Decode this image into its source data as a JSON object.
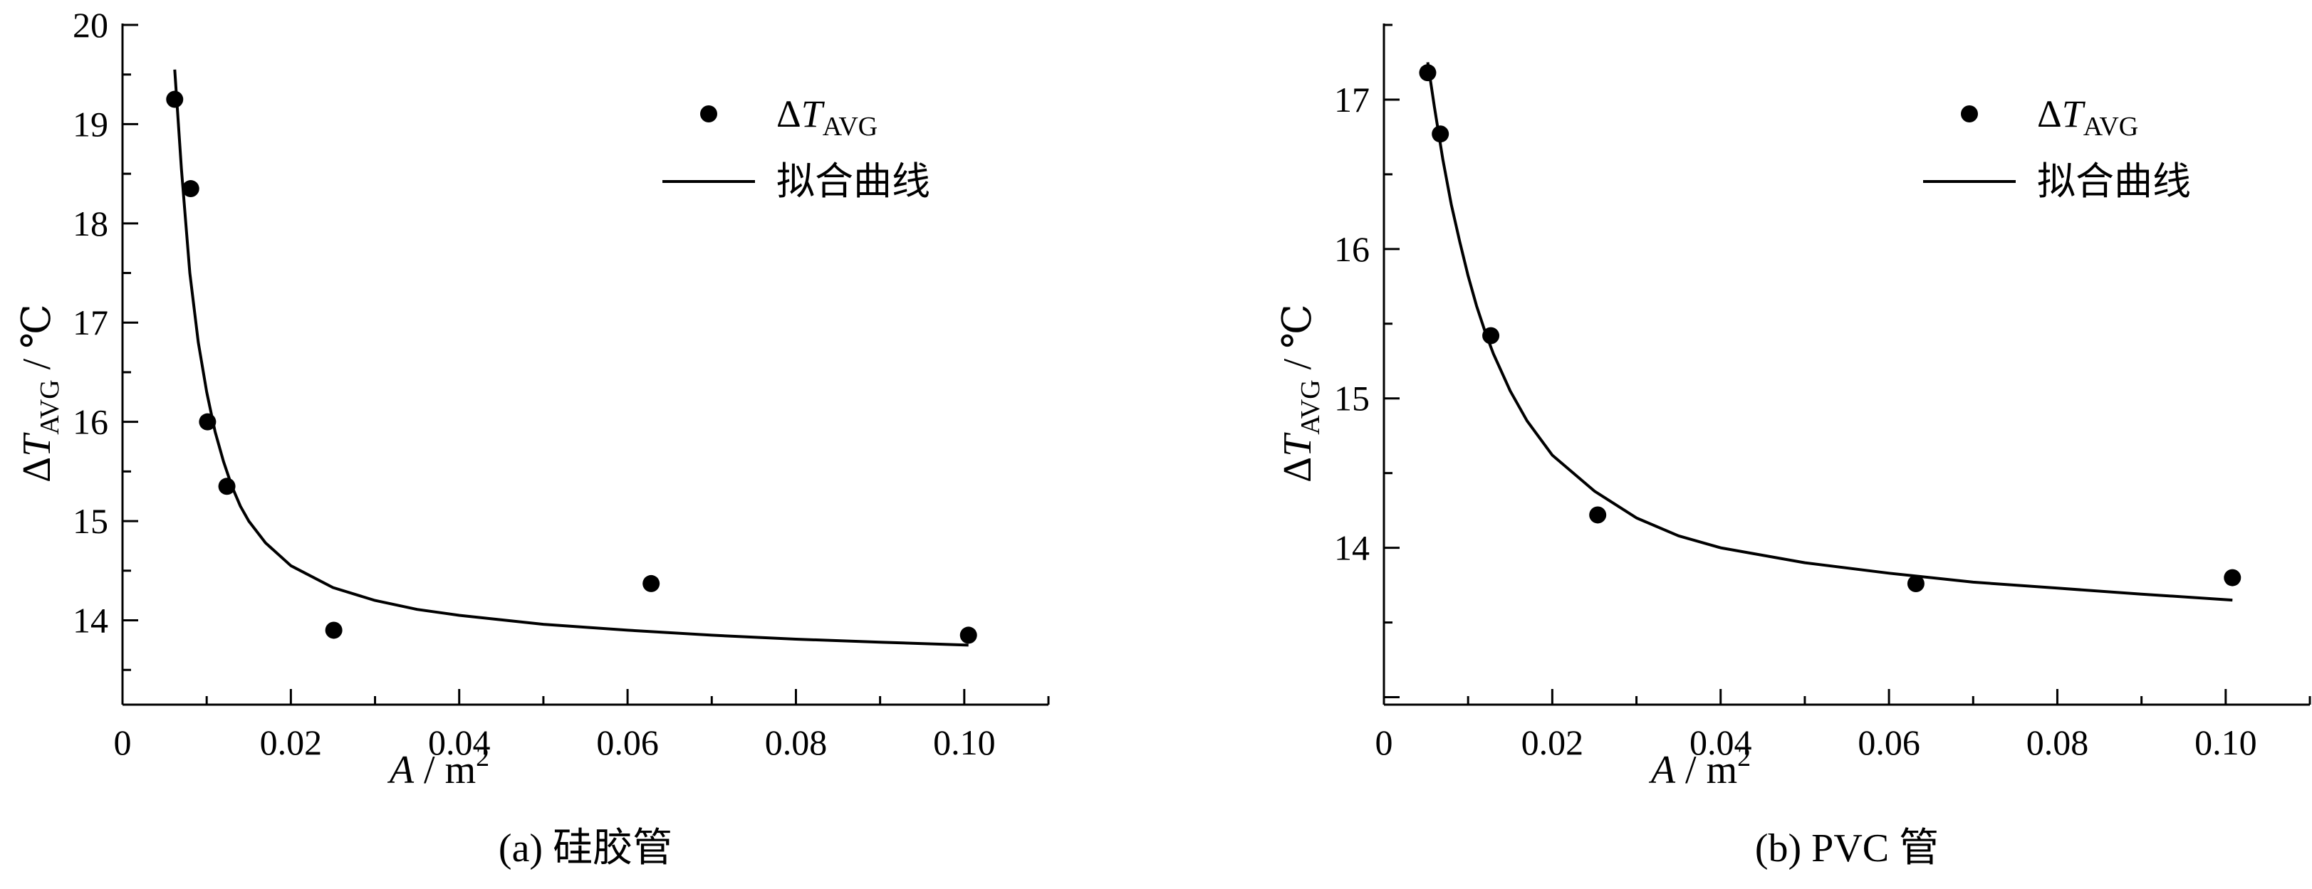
{
  "chart_data": [
    {
      "type": "scatter",
      "caption_prefix": "(a)",
      "caption_text": "硅胶管",
      "xlabel": {
        "symbol": "A",
        "unit": "m",
        "unit_exp": "2"
      },
      "ylabel": {
        "prefix": "Δ",
        "symbol": "T",
        "subscript": "AVG",
        "unit": "℃"
      },
      "xlim": [
        0,
        0.11
      ],
      "ylim": [
        13.15,
        20
      ],
      "xticks": [
        0,
        0.02,
        0.04,
        0.06,
        0.08,
        0.1
      ],
      "xtick_labels": [
        "0",
        "0.02",
        "0.04",
        "0.06",
        "0.08",
        "0.10"
      ],
      "yticks": [
        14,
        15,
        16,
        17,
        18,
        19,
        20
      ],
      "ytick_labels": [
        "14",
        "15",
        "16",
        "17",
        "18",
        "19",
        "20"
      ],
      "legend_position": "top-right",
      "series": [
        {
          "kind": "scatter",
          "name_prefix": "Δ",
          "name_symbol": "T",
          "name_subscript": "AVG",
          "x": [
            0.0062,
            0.0081,
            0.0101,
            0.0124,
            0.0251,
            0.0628,
            0.1005
          ],
          "y": [
            19.25,
            18.35,
            16.0,
            15.35,
            13.9,
            14.37,
            13.85
          ]
        },
        {
          "kind": "line",
          "name": "拟合曲线",
          "x": [
            0.0062,
            0.007,
            0.008,
            0.009,
            0.01,
            0.011,
            0.012,
            0.013,
            0.014,
            0.015,
            0.017,
            0.02,
            0.025,
            0.03,
            0.035,
            0.04,
            0.05,
            0.06,
            0.07,
            0.08,
            0.09,
            0.1005
          ],
          "y": [
            19.55,
            18.55,
            17.5,
            16.8,
            16.3,
            15.9,
            15.6,
            15.35,
            15.15,
            15.0,
            14.78,
            14.55,
            14.33,
            14.2,
            14.11,
            14.05,
            13.96,
            13.9,
            13.85,
            13.81,
            13.78,
            13.75
          ]
        }
      ]
    },
    {
      "type": "scatter",
      "caption_prefix": "(b)",
      "caption_text": "PVC 管",
      "xlabel": {
        "symbol": "A",
        "unit": "m",
        "unit_exp": "2"
      },
      "ylabel": {
        "prefix": "Δ",
        "symbol": "T",
        "subscript": "AVG",
        "unit": "℃"
      },
      "xlim": [
        0,
        0.11
      ],
      "ylim": [
        12.95,
        17.5
      ],
      "xticks": [
        0,
        0.02,
        0.04,
        0.06,
        0.08,
        0.1
      ],
      "xtick_labels": [
        "0",
        "0.02",
        "0.04",
        "0.06",
        "0.08",
        "0.10"
      ],
      "yticks": [
        14,
        15,
        16,
        17
      ],
      "ytick_labels": [
        "14",
        "15",
        "16",
        "17"
      ],
      "legend_position": "top-right",
      "series": [
        {
          "kind": "scatter",
          "name_prefix": "Δ",
          "name_symbol": "T",
          "name_subscript": "AVG",
          "x": [
            0.0052,
            0.0067,
            0.0127,
            0.0254,
            0.0632,
            0.1008
          ],
          "y": [
            17.18,
            16.77,
            15.42,
            14.22,
            13.76,
            13.8
          ]
        },
        {
          "kind": "line",
          "name": "拟合曲线",
          "x": [
            0.0052,
            0.006,
            0.007,
            0.008,
            0.009,
            0.01,
            0.011,
            0.012,
            0.013,
            0.015,
            0.017,
            0.02,
            0.025,
            0.03,
            0.035,
            0.04,
            0.05,
            0.06,
            0.07,
            0.08,
            0.09,
            0.1008
          ],
          "y": [
            17.25,
            16.95,
            16.6,
            16.3,
            16.05,
            15.82,
            15.62,
            15.45,
            15.3,
            15.05,
            14.85,
            14.62,
            14.38,
            14.2,
            14.08,
            14.0,
            13.9,
            13.83,
            13.77,
            13.73,
            13.69,
            13.65
          ]
        }
      ]
    }
  ]
}
